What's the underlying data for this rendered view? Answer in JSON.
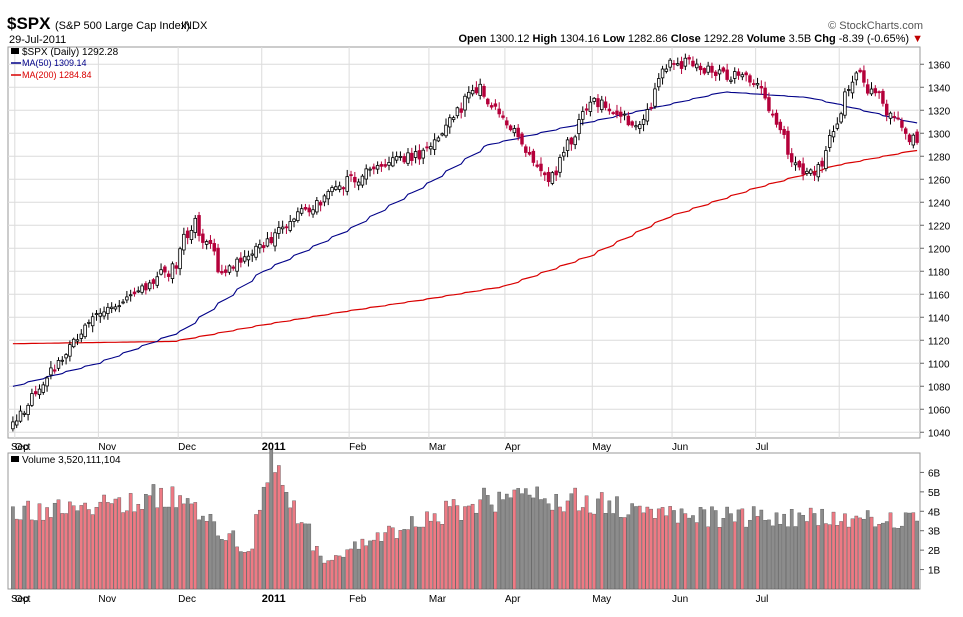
{
  "header": {
    "symbol": "$SPX",
    "name": "(S&P 500 Large Cap Index)",
    "exchange": "INDX",
    "date": "29-Jul-2011",
    "brand": "© StockCharts.com",
    "quote": {
      "open_label": "Open",
      "open": "1300.12",
      "high_label": "High",
      "high": "1304.16",
      "low_label": "Low",
      "low": "1282.86",
      "close_label": "Close",
      "close": "1292.28",
      "volume_label": "Volume",
      "volume": "3.5B",
      "chg_label": "Chg",
      "chg": "-8.39 (-0.65%)"
    }
  },
  "legend": {
    "price": "$SPX (Daily) 1292.28",
    "ma50": "MA(50) 1309.14",
    "ma200": "MA(200) 1284.84",
    "volume": "Volume 3,520,111,104"
  },
  "colors": {
    "up": "#ffffff",
    "down": "#b4003a",
    "ma50": "#000088",
    "ma200": "#d90000",
    "vol_up": "#ee7a84",
    "vol_down": "#8c8c8c",
    "grid": "#dcdcdc"
  },
  "chart_data": [
    {
      "type": "candlestick",
      "title": "$SPX (Daily) 1292.28",
      "ylim": [
        1035,
        1375
      ],
      "y_ticks": [
        1040,
        1060,
        1080,
        1100,
        1120,
        1140,
        1160,
        1180,
        1200,
        1220,
        1240,
        1260,
        1280,
        1300,
        1320,
        1340,
        1360
      ],
      "x_ticks": [
        "Sep",
        "Oct",
        "Nov",
        "Dec",
        "2011",
        "Feb",
        "Mar",
        "Apr",
        "May",
        "Jun",
        "Jul"
      ],
      "anchor_dates": [
        "2010-08-31",
        "2010-09-30",
        "2010-10-29",
        "2010-11-05",
        "2010-11-16",
        "2010-12-31",
        "2011-01-31",
        "2011-02-18",
        "2011-03-16",
        "2011-04-01",
        "2011-04-18",
        "2011-04-29",
        "2011-05-31",
        "2011-06-16",
        "2011-06-24",
        "2011-07-07",
        "2011-07-29"
      ],
      "anchor_close": [
        1049,
        1141,
        1183,
        1226,
        1178,
        1258,
        1286,
        1343,
        1256,
        1332,
        1305,
        1364,
        1345,
        1268,
        1268,
        1353,
        1292
      ],
      "ma50": {
        "name": "MA(50) 1309.14",
        "dates": [
          "2010-08-31",
          "2010-10-01",
          "2010-11-01",
          "2010-12-01",
          "2011-01-03",
          "2011-02-01",
          "2011-02-22",
          "2011-03-22",
          "2011-04-20",
          "2011-05-20",
          "2011-06-20",
          "2011-07-01",
          "2011-07-29"
        ],
        "values": [
          1080,
          1100,
          1128,
          1180,
          1218,
          1258,
          1290,
          1305,
          1320,
          1336,
          1331,
          1325,
          1309
        ]
      },
      "ma200": {
        "name": "MA(200) 1284.84",
        "dates": [
          "2010-08-31",
          "2010-10-29",
          "2010-11-30",
          "2010-12-31",
          "2011-01-31",
          "2011-02-28",
          "2011-03-31",
          "2011-04-29",
          "2011-05-31",
          "2011-06-30",
          "2011-07-29"
        ],
        "values": [
          1117,
          1119,
          1133,
          1145,
          1156,
          1167,
          1193,
          1227,
          1252,
          1272,
          1285
        ]
      }
    },
    {
      "type": "bar",
      "title": "Volume 3,520,111,104",
      "ylim": [
        0,
        7
      ],
      "y_unit": "B",
      "y_ticks": [
        "1B",
        "2B",
        "3B",
        "4B",
        "5B",
        "6B"
      ],
      "anchor_dates": [
        "2010-08-31",
        "2010-10-29",
        "2010-11-26",
        "2010-12-03",
        "2010-12-24",
        "2010-12-31",
        "2011-02-18",
        "2011-03-16",
        "2011-04-29",
        "2011-07-29"
      ],
      "anchor_values": [
        4.0,
        4.8,
        1.9,
        6.6,
        1.3,
        2.0,
        4.5,
        4.8,
        3.8,
        3.5
      ]
    }
  ]
}
